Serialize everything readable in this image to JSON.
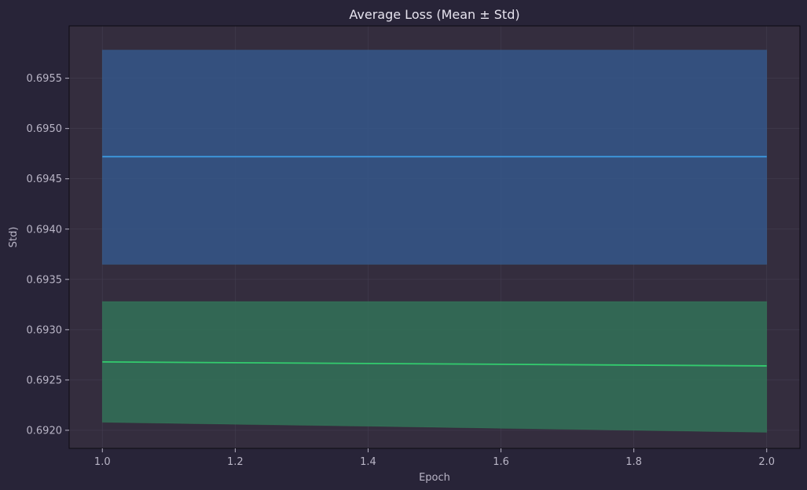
{
  "colors": {
    "page_bg": "#282438",
    "plot_bg": "#342d3e",
    "grid": "#4a4458",
    "axis": "#0c0a12",
    "text": "#b9b5c6",
    "title": "#e6e3ee"
  },
  "chart_data": {
    "type": "line",
    "title": "Average Loss (Mean ± Std)",
    "xlabel": "Epoch",
    "ylabel": "Std)",
    "xlim": [
      0.95,
      2.05
    ],
    "ylim": [
      0.69182,
      0.69602
    ],
    "xticks": [
      1.0,
      1.2,
      1.4,
      1.6,
      1.8,
      2.0
    ],
    "yticks": [
      0.692,
      0.6925,
      0.693,
      0.6935,
      0.694,
      0.6945,
      0.695,
      0.6955
    ],
    "grid": true,
    "legend": "none",
    "series": [
      {
        "color": "#3d9ee6",
        "band_color": "#35578a",
        "x": [
          1.0,
          2.0
        ],
        "mean": [
          0.69472,
          0.69472
        ],
        "lower": [
          0.69365,
          0.69365
        ],
        "upper": [
          0.69578,
          0.69578
        ]
      },
      {
        "color": "#33cc6e",
        "band_color": "#327258",
        "x": [
          1.0,
          2.0
        ],
        "mean": [
          0.69268,
          0.69264
        ],
        "lower": [
          0.69208,
          0.69198
        ],
        "upper": [
          0.69328,
          0.69328
        ]
      }
    ]
  }
}
